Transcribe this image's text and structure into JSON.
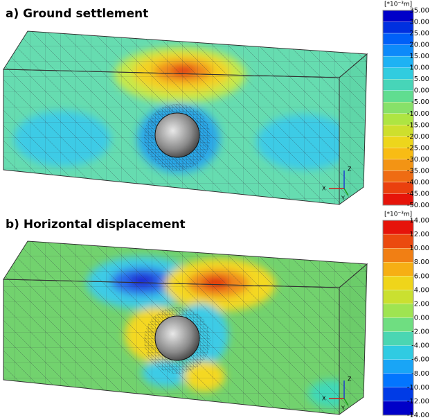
{
  "panels": [
    {
      "title": "a) Ground settlement",
      "unit": "[*10⁻³m]",
      "legend": [
        "35.00",
        "30.00",
        "25.00",
        "20.00",
        "15.00",
        "10.00",
        "5.00",
        "0.00",
        "-5.00",
        "-10.00",
        "-15.00",
        "-20.00",
        "-25.00",
        "-30.00",
        "-35.00",
        "-40.00",
        "-45.00",
        "-50.00"
      ],
      "axes": {
        "z": "Z",
        "x": "X",
        "y": "Y"
      }
    },
    {
      "title": "b) Horizontal displacement",
      "unit": "[*10⁻³m]",
      "legend": [
        "14.00",
        "12.00",
        "10.00",
        "8.00",
        "6.00",
        "4.00",
        "2.00",
        "0.00",
        "-2.00",
        "-4.00",
        "-6.00",
        "-8.00",
        "-10.00",
        "-12.00",
        "-14.00"
      ],
      "axes": {
        "z": "Z",
        "x": "X",
        "y": "Y"
      }
    }
  ]
}
